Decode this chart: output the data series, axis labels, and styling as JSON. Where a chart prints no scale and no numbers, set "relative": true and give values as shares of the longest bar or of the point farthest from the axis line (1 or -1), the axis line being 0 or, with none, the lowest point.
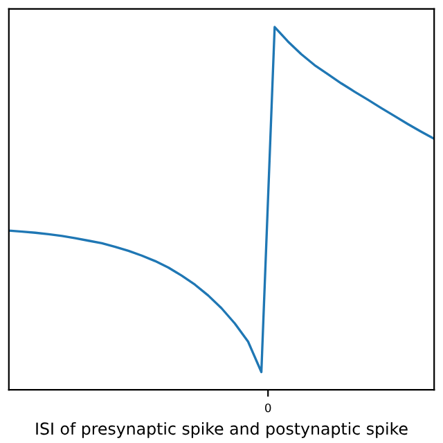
{
  "chart_data": {
    "type": "line",
    "xlabel": "ISI of presynaptic spike and postynaptic spike",
    "relative": true,
    "color": "#1f77b4",
    "tick_labels": "x",
    "annotations": [
      "0"
    ],
    "categories": [
      null,
      null,
      null,
      null,
      null,
      null,
      null,
      null,
      null,
      null,
      null,
      null,
      null,
      null,
      null,
      null,
      null,
      null,
      null,
      null,
      null,
      null,
      null,
      null,
      null,
      null,
      null,
      null,
      null,
      null,
      null,
      null,
      null
    ],
    "values": [
      0.439,
      0.436,
      0.433,
      0.429,
      0.424,
      0.418,
      0.411,
      0.404,
      0.394,
      0.383,
      0.37,
      0.355,
      0.337,
      0.315,
      0.29,
      0.26,
      0.225,
      0.183,
      0.133,
      0.049,
      1.0,
      0.96,
      0.925,
      0.895,
      0.87,
      0.845,
      0.822,
      0.8,
      0.777,
      0.755,
      0.733,
      0.712,
      0.692
    ]
  }
}
